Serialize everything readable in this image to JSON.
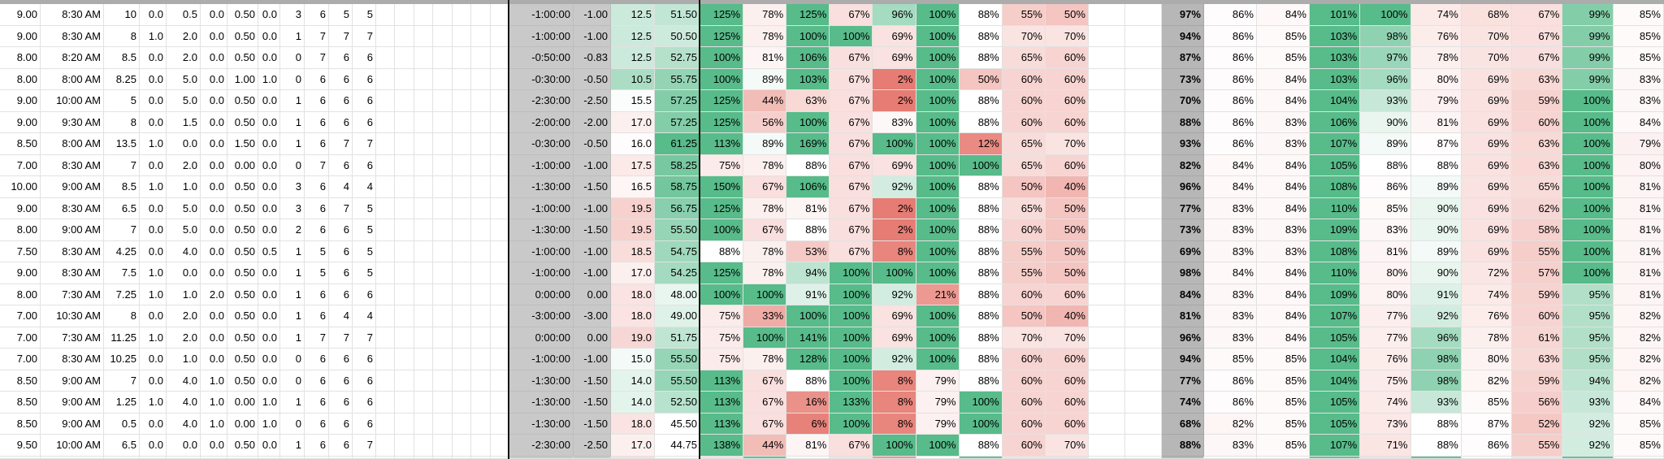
{
  "grid": {
    "rows": [
      {
        "left": [
          "9.00",
          "8:30 AM",
          "10",
          "0.0",
          "0.5",
          "0.0",
          "0.50",
          "0.0",
          "3",
          "6",
          "5",
          "5"
        ],
        "time": "-1:00:00",
        "time_num": "-1.00",
        "val1": "12.5",
        "val2": "51.50",
        "pct_block1": [
          125,
          78,
          125,
          67,
          96,
          100,
          88,
          55,
          50
        ],
        "pct_summary": 97,
        "pct_block2": [
          86,
          84,
          101,
          100,
          74,
          68,
          67,
          99,
          85
        ]
      },
      {
        "left": [
          "9.00",
          "8:30 AM",
          "8",
          "1.0",
          "2.0",
          "0.0",
          "0.50",
          "0.0",
          "1",
          "7",
          "7",
          "7"
        ],
        "time": "-1:00:00",
        "time_num": "-1.00",
        "val1": "12.5",
        "val2": "50.50",
        "pct_block1": [
          125,
          78,
          100,
          100,
          69,
          100,
          88,
          70,
          70
        ],
        "pct_summary": 94,
        "pct_block2": [
          86,
          85,
          103,
          98,
          76,
          70,
          67,
          99,
          85
        ]
      },
      {
        "left": [
          "8.00",
          "8:20 AM",
          "8.5",
          "0.0",
          "2.0",
          "0.0",
          "0.50",
          "0.0",
          "0",
          "7",
          "6",
          "6"
        ],
        "time": "-0:50:00",
        "time_num": "-0.83",
        "val1": "12.5",
        "val2": "52.75",
        "pct_block1": [
          100,
          81,
          106,
          67,
          69,
          100,
          88,
          65,
          60
        ],
        "pct_summary": 87,
        "pct_block2": [
          86,
          85,
          103,
          97,
          78,
          70,
          67,
          99,
          85
        ]
      },
      {
        "left": [
          "8.00",
          "8:00 AM",
          "8.25",
          "0.0",
          "5.0",
          "0.0",
          "1.00",
          "1.0",
          "0",
          "6",
          "6",
          "6"
        ],
        "time": "-0:30:00",
        "time_num": "-0.50",
        "val1": "10.5",
        "val2": "55.75",
        "pct_block1": [
          100,
          89,
          103,
          67,
          2,
          100,
          50,
          60,
          60
        ],
        "pct_summary": 73,
        "pct_block2": [
          86,
          84,
          103,
          96,
          80,
          69,
          63,
          99,
          83
        ]
      },
      {
        "left": [
          "9.00",
          "10:00 AM",
          "5",
          "0.0",
          "5.0",
          "0.0",
          "0.50",
          "0.0",
          "1",
          "6",
          "6",
          "6"
        ],
        "time": "-2:30:00",
        "time_num": "-2.50",
        "val1": "15.5",
        "val2": "57.25",
        "pct_block1": [
          125,
          44,
          63,
          67,
          2,
          100,
          88,
          60,
          60
        ],
        "pct_summary": 70,
        "pct_block2": [
          86,
          84,
          104,
          93,
          79,
          69,
          59,
          100,
          83
        ]
      },
      {
        "left": [
          "9.00",
          "9:30 AM",
          "8",
          "0.0",
          "1.5",
          "0.0",
          "0.50",
          "0.0",
          "1",
          "6",
          "6",
          "6"
        ],
        "time": "-2:00:00",
        "time_num": "-2.00",
        "val1": "17.0",
        "val2": "57.25",
        "pct_block1": [
          125,
          56,
          100,
          67,
          83,
          100,
          88,
          60,
          60
        ],
        "pct_summary": 88,
        "pct_block2": [
          86,
          83,
          106,
          90,
          81,
          69,
          60,
          100,
          84
        ]
      },
      {
        "left": [
          "8.50",
          "8:00 AM",
          "13.5",
          "1.0",
          "0.0",
          "0.0",
          "1.50",
          "0.0",
          "1",
          "6",
          "7",
          "7"
        ],
        "time": "-0:30:00",
        "time_num": "-0.50",
        "val1": "16.0",
        "val2": "61.25",
        "pct_block1": [
          113,
          89,
          169,
          67,
          100,
          100,
          12,
          65,
          70
        ],
        "pct_summary": 93,
        "pct_block2": [
          86,
          83,
          107,
          89,
          87,
          69,
          63,
          100,
          79
        ]
      },
      {
        "left": [
          "7.00",
          "8:30 AM",
          "7",
          "0.0",
          "2.0",
          "0.0",
          "0.00",
          "0.0",
          "0",
          "7",
          "6",
          "6"
        ],
        "time": "-1:00:00",
        "time_num": "-1.00",
        "val1": "17.5",
        "val2": "58.25",
        "pct_block1": [
          75,
          78,
          88,
          67,
          69,
          100,
          100,
          65,
          60
        ],
        "pct_summary": 82,
        "pct_block2": [
          84,
          84,
          105,
          88,
          88,
          69,
          63,
          100,
          80
        ]
      },
      {
        "left": [
          "10.00",
          "9:00 AM",
          "8.5",
          "1.0",
          "1.0",
          "0.0",
          "0.50",
          "0.0",
          "3",
          "6",
          "4",
          "4"
        ],
        "time": "-1:30:00",
        "time_num": "-1.50",
        "val1": "16.5",
        "val2": "58.75",
        "pct_block1": [
          150,
          67,
          106,
          67,
          92,
          100,
          88,
          50,
          40
        ],
        "pct_summary": 96,
        "pct_block2": [
          84,
          84,
          108,
          86,
          89,
          69,
          65,
          100,
          81
        ]
      },
      {
        "left": [
          "9.00",
          "8:30 AM",
          "6.5",
          "0.0",
          "5.0",
          "0.0",
          "0.50",
          "0.0",
          "3",
          "6",
          "7",
          "5"
        ],
        "time": "-1:00:00",
        "time_num": "-1.00",
        "val1": "19.5",
        "val2": "56.75",
        "pct_block1": [
          125,
          78,
          81,
          67,
          2,
          100,
          88,
          65,
          50
        ],
        "pct_summary": 77,
        "pct_block2": [
          83,
          84,
          110,
          85,
          90,
          69,
          62,
          100,
          81
        ]
      },
      {
        "left": [
          "8.00",
          "9:00 AM",
          "7",
          "0.0",
          "5.0",
          "0.0",
          "0.50",
          "0.0",
          "2",
          "6",
          "6",
          "5"
        ],
        "time": "-1:30:00",
        "time_num": "-1.50",
        "val1": "19.5",
        "val2": "55.50",
        "pct_block1": [
          100,
          67,
          88,
          67,
          2,
          100,
          88,
          60,
          50
        ],
        "pct_summary": 73,
        "pct_block2": [
          83,
          83,
          109,
          83,
          90,
          69,
          58,
          100,
          81
        ]
      },
      {
        "left": [
          "7.50",
          "8:30 AM",
          "4.25",
          "0.0",
          "4.0",
          "0.0",
          "0.50",
          "0.5",
          "1",
          "5",
          "6",
          "5"
        ],
        "time": "-1:00:00",
        "time_num": "-1.00",
        "val1": "18.5",
        "val2": "54.75",
        "pct_block1": [
          88,
          78,
          53,
          67,
          8,
          100,
          88,
          55,
          50
        ],
        "pct_summary": 69,
        "pct_block2": [
          83,
          83,
          108,
          81,
          89,
          69,
          55,
          100,
          81
        ]
      },
      {
        "left": [
          "9.00",
          "8:30 AM",
          "7.5",
          "1.0",
          "0.0",
          "0.0",
          "0.50",
          "0.0",
          "1",
          "5",
          "6",
          "5"
        ],
        "time": "-1:00:00",
        "time_num": "-1.00",
        "val1": "17.0",
        "val2": "54.25",
        "pct_block1": [
          125,
          78,
          94,
          100,
          100,
          100,
          88,
          55,
          50
        ],
        "pct_summary": 98,
        "pct_block2": [
          84,
          84,
          110,
          80,
          90,
          72,
          57,
          100,
          81
        ]
      },
      {
        "left": [
          "8.00",
          "7:30 AM",
          "7.25",
          "1.0",
          "1.0",
          "2.0",
          "0.50",
          "0.0",
          "1",
          "6",
          "6",
          "6"
        ],
        "time": "0:00:00",
        "time_num": "0.00",
        "val1": "18.0",
        "val2": "48.00",
        "pct_block1": [
          100,
          100,
          91,
          100,
          92,
          21,
          88,
          60,
          60
        ],
        "pct_summary": 84,
        "pct_block2": [
          83,
          84,
          109,
          80,
          91,
          74,
          59,
          95,
          81
        ]
      },
      {
        "left": [
          "7.00",
          "10:30 AM",
          "8",
          "0.0",
          "2.0",
          "0.0",
          "0.50",
          "0.0",
          "1",
          "6",
          "4",
          "4"
        ],
        "time": "-3:00:00",
        "time_num": "-3.00",
        "val1": "18.0",
        "val2": "49.00",
        "pct_block1": [
          75,
          33,
          100,
          100,
          69,
          100,
          88,
          50,
          40
        ],
        "pct_summary": 81,
        "pct_block2": [
          83,
          84,
          107,
          77,
          92,
          76,
          60,
          95,
          82
        ]
      },
      {
        "left": [
          "7.00",
          "7:30 AM",
          "11.25",
          "1.0",
          "2.0",
          "0.0",
          "0.50",
          "0.0",
          "1",
          "7",
          "7",
          "7"
        ],
        "time": "0:00:00",
        "time_num": "0.00",
        "val1": "19.0",
        "val2": "51.75",
        "pct_block1": [
          75,
          100,
          141,
          100,
          69,
          100,
          88,
          70,
          70
        ],
        "pct_summary": 96,
        "pct_block2": [
          83,
          84,
          105,
          77,
          96,
          78,
          61,
          95,
          82
        ]
      },
      {
        "left": [
          "7.00",
          "8:30 AM",
          "10.25",
          "0.0",
          "1.0",
          "0.0",
          "0.50",
          "0.0",
          "0",
          "6",
          "6",
          "6"
        ],
        "time": "-1:00:00",
        "time_num": "-1.00",
        "val1": "15.0",
        "val2": "55.50",
        "pct_block1": [
          75,
          78,
          128,
          100,
          92,
          100,
          88,
          60,
          60
        ],
        "pct_summary": 94,
        "pct_block2": [
          85,
          85,
          104,
          76,
          98,
          80,
          63,
          95,
          82
        ]
      },
      {
        "left": [
          "8.50",
          "9:00 AM",
          "7",
          "0.0",
          "4.0",
          "1.0",
          "0.50",
          "0.0",
          "0",
          "6",
          "6",
          "6"
        ],
        "time": "-1:30:00",
        "time_num": "-1.50",
        "val1": "14.0",
        "val2": "55.50",
        "pct_block1": [
          113,
          67,
          88,
          100,
          8,
          79,
          88,
          60,
          60
        ],
        "pct_summary": 77,
        "pct_block2": [
          86,
          85,
          104,
          75,
          98,
          82,
          59,
          94,
          82
        ]
      },
      {
        "left": [
          "8.50",
          "9:00 AM",
          "1.25",
          "1.0",
          "4.0",
          "1.0",
          "0.00",
          "1.0",
          "1",
          "6",
          "6",
          "6"
        ],
        "time": "-1:30:00",
        "time_num": "-1.50",
        "val1": "14.0",
        "val2": "52.50",
        "pct_block1": [
          113,
          67,
          16,
          133,
          8,
          79,
          100,
          60,
          60
        ],
        "pct_summary": 74,
        "pct_block2": [
          86,
          85,
          105,
          74,
          93,
          85,
          56,
          93,
          84
        ]
      },
      {
        "left": [
          "8.50",
          "9:00 AM",
          "0.5",
          "0.0",
          "4.0",
          "1.0",
          "0.00",
          "1.0",
          "0",
          "6",
          "6",
          "6"
        ],
        "time": "-1:30:00",
        "time_num": "-1.50",
        "val1": "18.0",
        "val2": "45.50",
        "pct_block1": [
          113,
          67,
          6,
          100,
          8,
          79,
          100,
          60,
          60
        ],
        "pct_summary": 68,
        "pct_block2": [
          82,
          85,
          105,
          73,
          88,
          87,
          52,
          92,
          85
        ]
      },
      {
        "left": [
          "9.50",
          "10:00 AM",
          "6.5",
          "0.0",
          "0.0",
          "0.0",
          "0.50",
          "0.0",
          "1",
          "6",
          "6",
          "7"
        ],
        "time": "-2:30:00",
        "time_num": "-2.50",
        "val1": "17.0",
        "val2": "44.75",
        "pct_block1": [
          138,
          44,
          81,
          67,
          100,
          100,
          88,
          60,
          70
        ],
        "pct_summary": 88,
        "pct_block2": [
          83,
          85,
          107,
          71,
          88,
          86,
          55,
          92,
          85
        ]
      }
    ],
    "partial_bottom_row": {
      "visible": true,
      "val1": "pink",
      "val2": "white",
      "pct_block1": [
        "pink",
        "green",
        "white",
        "pink",
        "red",
        "white",
        "green",
        "pink",
        "pink"
      ],
      "pct_block2": [
        "white",
        "white",
        "green",
        "pink",
        "green",
        "white",
        "pink",
        "green",
        "white"
      ]
    }
  },
  "colors": {
    "scale_green": "#57bb8a",
    "scale_red": "#e67c73",
    "scale_white": "#ffffff",
    "time_col_bg": "#c9c9c9",
    "summary_col_bg": "#b7b7b7",
    "top_strip": "#acacac",
    "gridline": "#e2e2e2",
    "divider": "#141414"
  }
}
